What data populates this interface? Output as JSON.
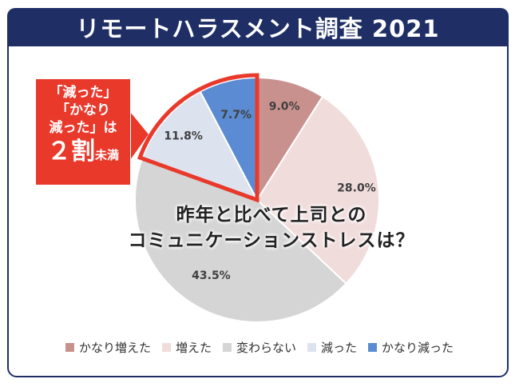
{
  "title": "リモートハラスメント調査 2021",
  "question_lines": [
    "昨年と比べて上司との",
    "コミュニケーションストレスは？"
  ],
  "callout": {
    "line1": "「減った」",
    "line2": "「かなり",
    "line3": "減った」は",
    "big_number": "２割",
    "big_suffix": "未満"
  },
  "chart_data": {
    "type": "pie",
    "start": "12 o'clock, clockwise",
    "slices": [
      {
        "label": "かなり増えた",
        "value": 9.0,
        "display": "9.0%",
        "color": "#c9918e"
      },
      {
        "label": "増えた",
        "value": 28.0,
        "display": "28.0%",
        "color": "#f1dcdc"
      },
      {
        "label": "変わらない",
        "value": 43.5,
        "display": "43.5%",
        "color": "#d5d5d5"
      },
      {
        "label": "減った",
        "value": 11.8,
        "display": "11.8%",
        "color": "#dce3ef"
      },
      {
        "label": "かなり減った",
        "value": 7.7,
        "display": "7.7%",
        "color": "#5b8bd2"
      }
    ],
    "highlight_color": "#e8392b",
    "highlighted": [
      "減った",
      "かなり減った"
    ]
  }
}
